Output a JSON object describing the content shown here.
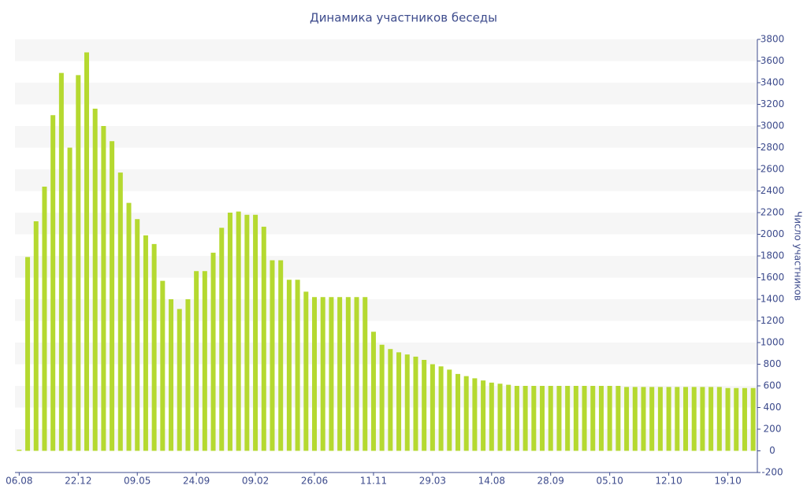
{
  "chart_data": {
    "type": "bar",
    "title": "Динамика участников беседы",
    "y_label": "Число участников",
    "categories": [
      "06.08",
      null,
      null,
      null,
      null,
      null,
      null,
      "22.12",
      null,
      null,
      null,
      null,
      null,
      null,
      "09.05",
      null,
      null,
      null,
      null,
      null,
      null,
      "24.09",
      null,
      null,
      null,
      null,
      null,
      null,
      "09.02",
      null,
      null,
      null,
      null,
      null,
      null,
      "26.06",
      null,
      null,
      null,
      null,
      null,
      null,
      "11.11",
      null,
      null,
      null,
      null,
      null,
      null,
      "29.03",
      null,
      null,
      null,
      null,
      null,
      null,
      "14.08",
      null,
      null,
      null,
      null,
      null,
      null,
      "28.09",
      null,
      null,
      null,
      null,
      null,
      null,
      "05.10",
      null,
      null,
      null,
      null,
      null,
      null,
      "12.10",
      null,
      null,
      null,
      null,
      null,
      null,
      "19.10",
      null,
      null,
      null
    ],
    "values": [
      10,
      1790,
      2120,
      2440,
      3100,
      3490,
      2800,
      3470,
      3680,
      3160,
      3000,
      2860,
      2570,
      2290,
      2140,
      1990,
      1910,
      1570,
      1400,
      1310,
      1400,
      1660,
      1660,
      1830,
      2060,
      2200,
      2210,
      2180,
      2180,
      2070,
      1760,
      1760,
      1580,
      1580,
      1470,
      1420,
      1420,
      1420,
      1420,
      1420,
      1420,
      1420,
      1100,
      980,
      940,
      910,
      890,
      870,
      840,
      800,
      780,
      750,
      710,
      690,
      670,
      650,
      630,
      620,
      610,
      600,
      600,
      600,
      600,
      600,
      600,
      600,
      600,
      600,
      600,
      600,
      600,
      600,
      590,
      590,
      590,
      590,
      590,
      590,
      590,
      590,
      590,
      590,
      590,
      590,
      580,
      580,
      580,
      580
    ],
    "color": "#b5d930",
    "ylim": [
      -200,
      3800
    ],
    "yticks": [
      -200,
      0,
      200,
      400,
      600,
      800,
      1000,
      1200,
      1400,
      1600,
      1800,
      2000,
      2200,
      2400,
      2600,
      2800,
      3000,
      3200,
      3400,
      3600,
      3800
    ],
    "grid": true
  }
}
